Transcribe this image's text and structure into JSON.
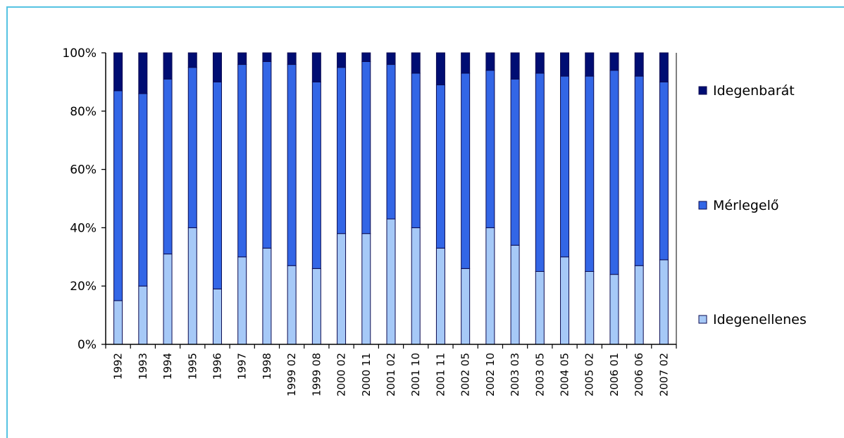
{
  "chart_data": {
    "type": "bar",
    "stacked": true,
    "normalized_percent": true,
    "categories": [
      "1992",
      "1993",
      "1994",
      "1995",
      "1996",
      "1997",
      "1998",
      "1999 02",
      "1999 08",
      "2000 02",
      "2000 11",
      "2001 02",
      "2001 10",
      "2001 11",
      "2002 05",
      "2002 10",
      "2003 03",
      "2003 05",
      "2004 05",
      "2005 02",
      "2006 01",
      "2006 06",
      "2007 02"
    ],
    "series": [
      {
        "name": "Idegenellenes",
        "color": "#a6c9f7",
        "values": [
          15,
          20,
          31,
          40,
          19,
          30,
          33,
          27,
          26,
          38,
          38,
          43,
          40,
          33,
          26,
          40,
          34,
          25,
          30,
          25,
          24,
          27,
          29
        ]
      },
      {
        "name": "Mérlegelő",
        "color": "#3366e6",
        "values": [
          72,
          66,
          60,
          55,
          71,
          66,
          64,
          69,
          64,
          57,
          59,
          53,
          53,
          56,
          67,
          54,
          57,
          68,
          62,
          67,
          70,
          65,
          61
        ]
      },
      {
        "name": "Idegenbarát",
        "color": "#000d73",
        "values": [
          13,
          14,
          9,
          5,
          10,
          4,
          3,
          4,
          10,
          5,
          3,
          4,
          7,
          11,
          7,
          6,
          9,
          7,
          8,
          8,
          6,
          8,
          10
        ]
      }
    ],
    "yticks": [
      "0%",
      "20%",
      "40%",
      "60%",
      "80%",
      "100%"
    ],
    "ylim": [
      0,
      100
    ],
    "grid": false,
    "legend_position": "right",
    "legend_order": [
      "Idegenbarát",
      "Mérlegelő",
      "Idegenellenes"
    ]
  }
}
